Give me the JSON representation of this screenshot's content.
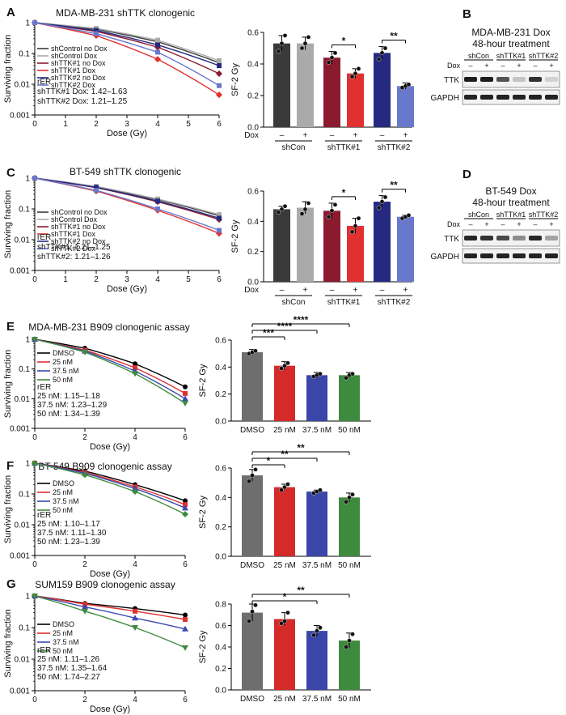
{
  "figure": {
    "panels": {
      "A": {
        "letter": "A",
        "title": "MDA-MB-231 shTTK clonogenic",
        "rer_lines": [
          "rER",
          "shTTK#1 Dox: 1.42–1.63",
          "shTTK#2 Dox: 1.21–1.25"
        ]
      },
      "B": {
        "letter": "B",
        "title_lines": [
          "MDA-MB-231 Dox",
          "48-hour treatment"
        ]
      },
      "C": {
        "letter": "C",
        "title": "BT-549 shTTK clonogenic",
        "rer_lines": [
          "rER",
          "shTTK#1: 1.21–1.25",
          "shTTK#2: 1.21–1.26"
        ]
      },
      "D": {
        "letter": "D",
        "title_lines": [
          "BT-549 Dox",
          "48-hour treatment"
        ]
      },
      "E": {
        "letter": "E",
        "title": "MDA-MB-231 B909 clonogenic assay",
        "rer_lines": [
          "rER",
          "25 nM: 1.15–1.18",
          "37.5 nM: 1.23–1.29",
          "50 nM: 1.34–1.39"
        ]
      },
      "F": {
        "letter": "F",
        "title": "BT-549 B909 clonogenic assay",
        "rer_lines": [
          "rER",
          "25 nM: 1.10–1.17",
          "37.5 nM: 1.11–1.30",
          "50 nM: 1.23–1.39"
        ]
      },
      "G": {
        "letter": "G",
        "title": "SUM159 B909 clonogenic assay",
        "rer_lines": [
          "rER",
          "25 nM: 1.11–1.26",
          "37.5 nM: 1.35–1.64",
          "50 nM: 1.74–2.27"
        ]
      }
    },
    "western_blot": {
      "groups": [
        "shCon",
        "shTTK#1",
        "shTTK#2"
      ],
      "dox_label": "Dox",
      "lane_signs": [
        "–",
        "+",
        "–",
        "+",
        "–",
        "+"
      ],
      "rows": [
        "TTK",
        "GAPDH"
      ]
    }
  },
  "chart_data": [
    {
      "id": "A-left",
      "type": "line",
      "title": "MDA-MB-231 shTTK clonogenic",
      "xlabel": "Dose (Gy)",
      "ylabel": "Surviving fraction",
      "yscale": "log",
      "xlim": [
        0,
        6
      ],
      "ylim": [
        0.001,
        1
      ],
      "x_ticks": [
        "0",
        "1",
        "2",
        "3",
        "4",
        "5",
        "6"
      ],
      "y_ticks": [
        "1",
        "0.1",
        "0.01",
        "0.001"
      ],
      "x": [
        0,
        2,
        4,
        6
      ],
      "series": [
        {
          "name": "shControl no Dox",
          "color": "#3a3a3a",
          "marker": "square",
          "values": [
            1,
            0.62,
            0.24,
            0.05
          ]
        },
        {
          "name": "shControl Dox",
          "color": "#aaaaaa",
          "marker": "square",
          "values": [
            1,
            0.65,
            0.27,
            0.058
          ]
        },
        {
          "name": "shTTK#1 no Dox",
          "color": "#8b1a2e",
          "marker": "diamond",
          "values": [
            1,
            0.52,
            0.16,
            0.022
          ]
        },
        {
          "name": "shTTK#1 Dox",
          "color": "#e03030",
          "marker": "diamond",
          "values": [
            1,
            0.38,
            0.065,
            0.0045
          ]
        },
        {
          "name": "shTTK#2 no Dox",
          "color": "#252a80",
          "marker": "square",
          "values": [
            1,
            0.56,
            0.19,
            0.04
          ]
        },
        {
          "name": "shTTK#2 Dox",
          "color": "#6a78cc",
          "marker": "square",
          "values": [
            1,
            0.44,
            0.11,
            0.009
          ]
        }
      ]
    },
    {
      "id": "A-right",
      "type": "bar",
      "ylabel": "SF-2 Gy",
      "ylim": [
        0,
        0.6
      ],
      "y_ticks": [
        "0.0",
        "0.2",
        "0.4",
        "0.6"
      ],
      "categories": [
        "shCon –",
        "shCon +",
        "shTTK#1 –",
        "shTTK#1 +",
        "shTTK#2 –",
        "shTTK#2 +"
      ],
      "values": [
        0.53,
        0.53,
        0.44,
        0.34,
        0.47,
        0.26
      ],
      "errors": [
        0.05,
        0.04,
        0.04,
        0.03,
        0.04,
        0.02
      ],
      "points": [
        [
          0.48,
          0.53,
          0.58
        ],
        [
          0.5,
          0.53,
          0.57
        ],
        [
          0.41,
          0.44,
          0.47
        ],
        [
          0.32,
          0.34,
          0.37
        ],
        [
          0.43,
          0.47,
          0.5
        ],
        [
          0.25,
          0.26,
          0.27
        ]
      ],
      "colors": [
        "#3a3a3a",
        "#aaaaaa",
        "#8b1a2e",
        "#e03030",
        "#252a80",
        "#6a78cc"
      ],
      "group_labels": [
        "shCon",
        "shTTK#1",
        "shTTK#2"
      ],
      "dox_label": "Dox",
      "sign_labels": [
        "–",
        "+",
        "–",
        "+",
        "–",
        "+"
      ],
      "significance": [
        {
          "from": 2,
          "to": 3,
          "label": "*"
        },
        {
          "from": 4,
          "to": 5,
          "label": "**"
        }
      ]
    },
    {
      "id": "C-left",
      "type": "line",
      "title": "BT-549 shTTK clonogenic",
      "xlabel": "Dose (Gy)",
      "ylabel": "Surviving fraction",
      "yscale": "log",
      "xlim": [
        0,
        6
      ],
      "ylim": [
        0.001,
        1
      ],
      "x_ticks": [
        "0",
        "1",
        "2",
        "3",
        "4",
        "5",
        "6"
      ],
      "y_ticks": [
        "1",
        "0.1",
        "0.01",
        "0.001"
      ],
      "x": [
        0,
        2,
        4,
        6
      ],
      "series": [
        {
          "name": "shControl no Dox",
          "color": "#3a3a3a",
          "marker": "square",
          "values": [
            1,
            0.52,
            0.2,
            0.06
          ]
        },
        {
          "name": "shControl Dox",
          "color": "#aaaaaa",
          "marker": "square",
          "values": [
            1,
            0.54,
            0.21,
            0.065
          ]
        },
        {
          "name": "shTTK#1 no Dox",
          "color": "#8b1a2e",
          "marker": "diamond",
          "values": [
            1,
            0.49,
            0.17,
            0.045
          ]
        },
        {
          "name": "shTTK#1 Dox",
          "color": "#e03030",
          "marker": "diamond",
          "values": [
            1,
            0.38,
            0.09,
            0.016
          ]
        },
        {
          "name": "shTTK#2 no Dox",
          "color": "#252a80",
          "marker": "square",
          "values": [
            1,
            0.5,
            0.18,
            0.05
          ]
        },
        {
          "name": "shTTK#2 Dox",
          "color": "#6a78cc",
          "marker": "square",
          "values": [
            1,
            0.4,
            0.1,
            0.02
          ]
        }
      ]
    },
    {
      "id": "C-right",
      "type": "bar",
      "ylabel": "SF-2 Gy",
      "ylim": [
        0,
        0.6
      ],
      "y_ticks": [
        "0.0",
        "0.2",
        "0.4",
        "0.6"
      ],
      "categories": [
        "shCon –",
        "shCon +",
        "shTTK#1 –",
        "shTTK#1 +",
        "shTTK#2 –",
        "shTTK#2 +"
      ],
      "values": [
        0.48,
        0.49,
        0.47,
        0.37,
        0.53,
        0.43
      ],
      "errors": [
        0.02,
        0.04,
        0.05,
        0.05,
        0.04,
        0.01
      ],
      "points": [
        [
          0.46,
          0.48,
          0.5
        ],
        [
          0.45,
          0.48,
          0.52
        ],
        [
          0.43,
          0.47,
          0.51
        ],
        [
          0.33,
          0.37,
          0.42
        ],
        [
          0.49,
          0.53,
          0.56
        ],
        [
          0.42,
          0.43,
          0.44
        ]
      ],
      "colors": [
        "#3a3a3a",
        "#aaaaaa",
        "#8b1a2e",
        "#e03030",
        "#252a80",
        "#6a78cc"
      ],
      "group_labels": [
        "shCon",
        "shTTK#1",
        "shTTK#2"
      ],
      "dox_label": "Dox",
      "sign_labels": [
        "–",
        "+",
        "–",
        "+",
        "–",
        "+"
      ],
      "significance": [
        {
          "from": 2,
          "to": 3,
          "label": "*"
        },
        {
          "from": 4,
          "to": 5,
          "label": "**"
        }
      ]
    },
    {
      "id": "E-left",
      "type": "line",
      "title": "MDA-MB-231 B909 clonogenic assay",
      "xlabel": "Dose (Gy)",
      "ylabel": "Surviving fraction",
      "yscale": "log",
      "xlim": [
        0,
        6
      ],
      "ylim": [
        0.001,
        1
      ],
      "x_ticks": [
        "0",
        "2",
        "4",
        "6"
      ],
      "y_ticks": [
        "1",
        "0.1",
        "0.01",
        "0.001"
      ],
      "x": [
        0,
        2,
        4,
        6
      ],
      "series": [
        {
          "name": "DMSO",
          "color": "#000000",
          "marker": "circle",
          "values": [
            1,
            0.5,
            0.15,
            0.025
          ]
        },
        {
          "name": "25 nM",
          "color": "#e03030",
          "marker": "square",
          "values": [
            1,
            0.43,
            0.11,
            0.015
          ]
        },
        {
          "name": "37.5 nM",
          "color": "#3a4ab0",
          "marker": "triangle",
          "values": [
            1,
            0.4,
            0.085,
            0.01
          ]
        },
        {
          "name": "50 nM",
          "color": "#3e8a3e",
          "marker": "triangle-down",
          "values": [
            1,
            0.37,
            0.07,
            0.007
          ]
        }
      ]
    },
    {
      "id": "E-right",
      "type": "bar",
      "ylabel": "SF-2 Gy",
      "ylim": [
        0,
        0.6
      ],
      "y_ticks": [
        "0.0",
        "0.2",
        "0.4",
        "0.6"
      ],
      "categories": [
        "DMSO",
        "25 nM",
        "37.5 nM",
        "50 nM"
      ],
      "values": [
        0.51,
        0.41,
        0.34,
        0.34
      ],
      "errors": [
        0.02,
        0.03,
        0.02,
        0.02
      ],
      "points": [
        [
          0.5,
          0.51,
          0.52
        ],
        [
          0.39,
          0.41,
          0.43
        ],
        [
          0.33,
          0.34,
          0.35
        ],
        [
          0.32,
          0.34,
          0.35
        ]
      ],
      "colors": [
        "#6e6e6e",
        "#d42a2a",
        "#3a46a8",
        "#3e8a3e"
      ],
      "significance": [
        {
          "from": 0,
          "to": 1,
          "label": "***"
        },
        {
          "from": 0,
          "to": 2,
          "label": "****"
        },
        {
          "from": 0,
          "to": 3,
          "label": "****"
        }
      ]
    },
    {
      "id": "F-left",
      "type": "line",
      "title": "BT-549 B909 clonogenic assay",
      "xlabel": "Dose (Gy)",
      "ylabel": "Surviving fraction",
      "yscale": "log",
      "xlim": [
        0,
        6
      ],
      "ylim": [
        0.001,
        1
      ],
      "x_ticks": [
        "0",
        "2",
        "4",
        "6"
      ],
      "y_ticks": [
        "1",
        "0.1",
        "0.01",
        "0.001"
      ],
      "x": [
        0,
        2,
        4,
        6
      ],
      "series": [
        {
          "name": "DMSO",
          "color": "#000000",
          "marker": "circle",
          "values": [
            1,
            0.55,
            0.2,
            0.06
          ]
        },
        {
          "name": "25 nM",
          "color": "#e03030",
          "marker": "square",
          "values": [
            1,
            0.5,
            0.17,
            0.045
          ]
        },
        {
          "name": "37.5 nM",
          "color": "#3a4ab0",
          "marker": "triangle",
          "values": [
            1,
            0.47,
            0.15,
            0.035
          ]
        },
        {
          "name": "50 nM",
          "color": "#3e8a3e",
          "marker": "diamond",
          "values": [
            1,
            0.42,
            0.12,
            0.022
          ]
        }
      ]
    },
    {
      "id": "F-right",
      "type": "bar",
      "ylabel": "SF-2 Gy",
      "ylim": [
        0,
        0.6
      ],
      "y_ticks": [
        "0.0",
        "0.2",
        "0.4",
        "0.6"
      ],
      "categories": [
        "DMSO",
        "25 nM",
        "37.5 nM",
        "50 nM"
      ],
      "values": [
        0.55,
        0.47,
        0.44,
        0.4
      ],
      "errors": [
        0.04,
        0.02,
        0.01,
        0.03
      ],
      "points": [
        [
          0.51,
          0.55,
          0.59
        ],
        [
          0.45,
          0.47,
          0.49
        ],
        [
          0.43,
          0.44,
          0.45
        ],
        [
          0.37,
          0.4,
          0.42
        ]
      ],
      "colors": [
        "#6e6e6e",
        "#d42a2a",
        "#3a46a8",
        "#3e8a3e"
      ],
      "significance": [
        {
          "from": 0,
          "to": 1,
          "label": "*"
        },
        {
          "from": 0,
          "to": 2,
          "label": "**"
        },
        {
          "from": 0,
          "to": 3,
          "label": "**"
        }
      ]
    },
    {
      "id": "G-left",
      "type": "line",
      "title": "SUM159 B909 clonogenic assay",
      "xlabel": "Dose (Gy)",
      "ylabel": "Surviving fraction",
      "yscale": "log",
      "xlim": [
        0,
        6
      ],
      "ylim": [
        0.001,
        1
      ],
      "x_ticks": [
        "0",
        "2",
        "4",
        "6"
      ],
      "y_ticks": [
        "1",
        "0.1",
        "0.01",
        "0.001"
      ],
      "x": [
        0,
        2,
        4,
        6
      ],
      "series": [
        {
          "name": "DMSO",
          "color": "#000000",
          "marker": "circle",
          "values": [
            1,
            0.58,
            0.4,
            0.25
          ]
        },
        {
          "name": "25 nM",
          "color": "#e03030",
          "marker": "square",
          "values": [
            1,
            0.55,
            0.33,
            0.18
          ]
        },
        {
          "name": "37.5 nM",
          "color": "#3a4ab0",
          "marker": "triangle",
          "values": [
            1,
            0.45,
            0.2,
            0.09
          ]
        },
        {
          "name": "50 nM",
          "color": "#3e8a3e",
          "marker": "triangle-down",
          "values": [
            1,
            0.33,
            0.1,
            0.023
          ]
        }
      ]
    },
    {
      "id": "G-right",
      "type": "bar",
      "ylabel": "SF-2 Gy",
      "ylim": [
        0,
        0.8
      ],
      "y_ticks": [
        "0.0",
        "0.2",
        "0.4",
        "0.6",
        "0.8"
      ],
      "categories": [
        "DMSO",
        "25 nM",
        "37.5 nM",
        "50 nM"
      ],
      "values": [
        0.72,
        0.66,
        0.55,
        0.46
      ],
      "errors": [
        0.08,
        0.06,
        0.05,
        0.07
      ],
      "points": [
        [
          0.64,
          0.73,
          0.79
        ],
        [
          0.62,
          0.64,
          0.72
        ],
        [
          0.51,
          0.55,
          0.58
        ],
        [
          0.4,
          0.46,
          0.52
        ]
      ],
      "colors": [
        "#6e6e6e",
        "#d42a2a",
        "#3a46a8",
        "#3e8a3e"
      ],
      "significance": [
        {
          "from": 0,
          "to": 2,
          "label": "*"
        },
        {
          "from": 0,
          "to": 3,
          "label": "**"
        }
      ]
    }
  ]
}
